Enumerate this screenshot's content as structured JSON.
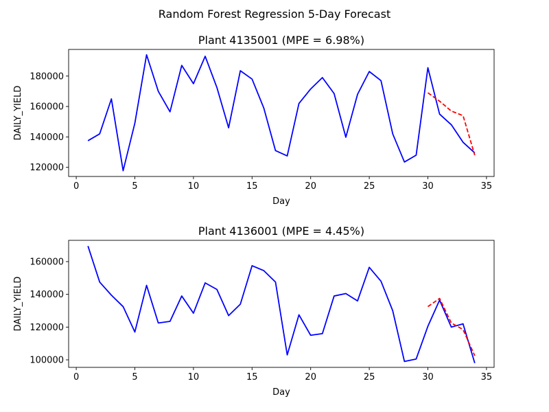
{
  "figure_title": "Random Forest Regression 5-Day Forecast",
  "colors": {
    "actual": "#0000ff",
    "forecast": "#ff0000"
  },
  "chart_data": [
    {
      "type": "line",
      "title": "Plant 4135001 (MPE = 6.98%)",
      "xlabel": "Day",
      "ylabel": "DAILY_YIELD",
      "xlim": [
        -0.65,
        35.65
      ],
      "ylim": [
        114000,
        197500
      ],
      "xticks": [
        0,
        5,
        10,
        15,
        20,
        25,
        30,
        35
      ],
      "yticks": [
        120000,
        140000,
        160000,
        180000
      ],
      "grid": false,
      "series": [
        {
          "style": "solid",
          "color": "#0000ff",
          "x": [
            1,
            2,
            3,
            4,
            5,
            6,
            7,
            8,
            9,
            10,
            11,
            12,
            13,
            14,
            15,
            16,
            17,
            18,
            19,
            20,
            21,
            22,
            23,
            24,
            25,
            26,
            27,
            28,
            29,
            30,
            31,
            32,
            33,
            34
          ],
          "y": [
            137500,
            142000,
            165000,
            117800,
            149000,
            194000,
            170000,
            156500,
            187000,
            175000,
            193000,
            172500,
            146000,
            183500,
            178000,
            159000,
            131000,
            127500,
            162000,
            171500,
            179000,
            168500,
            139800,
            168000,
            183000,
            177000,
            142000,
            123500,
            128000,
            185500,
            155000,
            148000,
            136500,
            129500
          ]
        },
        {
          "style": "dashed",
          "color": "#ff0000",
          "x": [
            30,
            31,
            32,
            33,
            34
          ],
          "y": [
            169000,
            163500,
            157000,
            154000,
            128000
          ]
        }
      ]
    },
    {
      "type": "line",
      "title": "Plant 4136001 (MPE = 4.45%)",
      "xlabel": "Day",
      "ylabel": "DAILY_YIELD",
      "xlim": [
        -0.65,
        35.65
      ],
      "ylim": [
        95400,
        173000
      ],
      "xticks": [
        0,
        5,
        10,
        15,
        20,
        25,
        30,
        35
      ],
      "yticks": [
        100000,
        120000,
        140000,
        160000
      ],
      "grid": false,
      "series": [
        {
          "style": "solid",
          "color": "#0000ff",
          "x": [
            1,
            2,
            3,
            4,
            5,
            6,
            7,
            8,
            9,
            10,
            11,
            12,
            13,
            14,
            15,
            16,
            17,
            18,
            19,
            20,
            21,
            22,
            23,
            24,
            25,
            26,
            27,
            28,
            29,
            30,
            31,
            32,
            33,
            34
          ],
          "y": [
            169500,
            147500,
            139500,
            132500,
            117000,
            145500,
            122500,
            123500,
            139000,
            128500,
            147000,
            143000,
            127000,
            134000,
            157500,
            154500,
            147500,
            103000,
            127500,
            115000,
            116000,
            139000,
            140500,
            136000,
            156500,
            148000,
            130000,
            99000,
            100500,
            120500,
            136500,
            120000,
            122000,
            98000
          ]
        },
        {
          "style": "dashed",
          "color": "#ff0000",
          "x": [
            30,
            31,
            32,
            33,
            34
          ],
          "y": [
            132500,
            137500,
            122500,
            118500,
            102500
          ]
        }
      ]
    }
  ]
}
